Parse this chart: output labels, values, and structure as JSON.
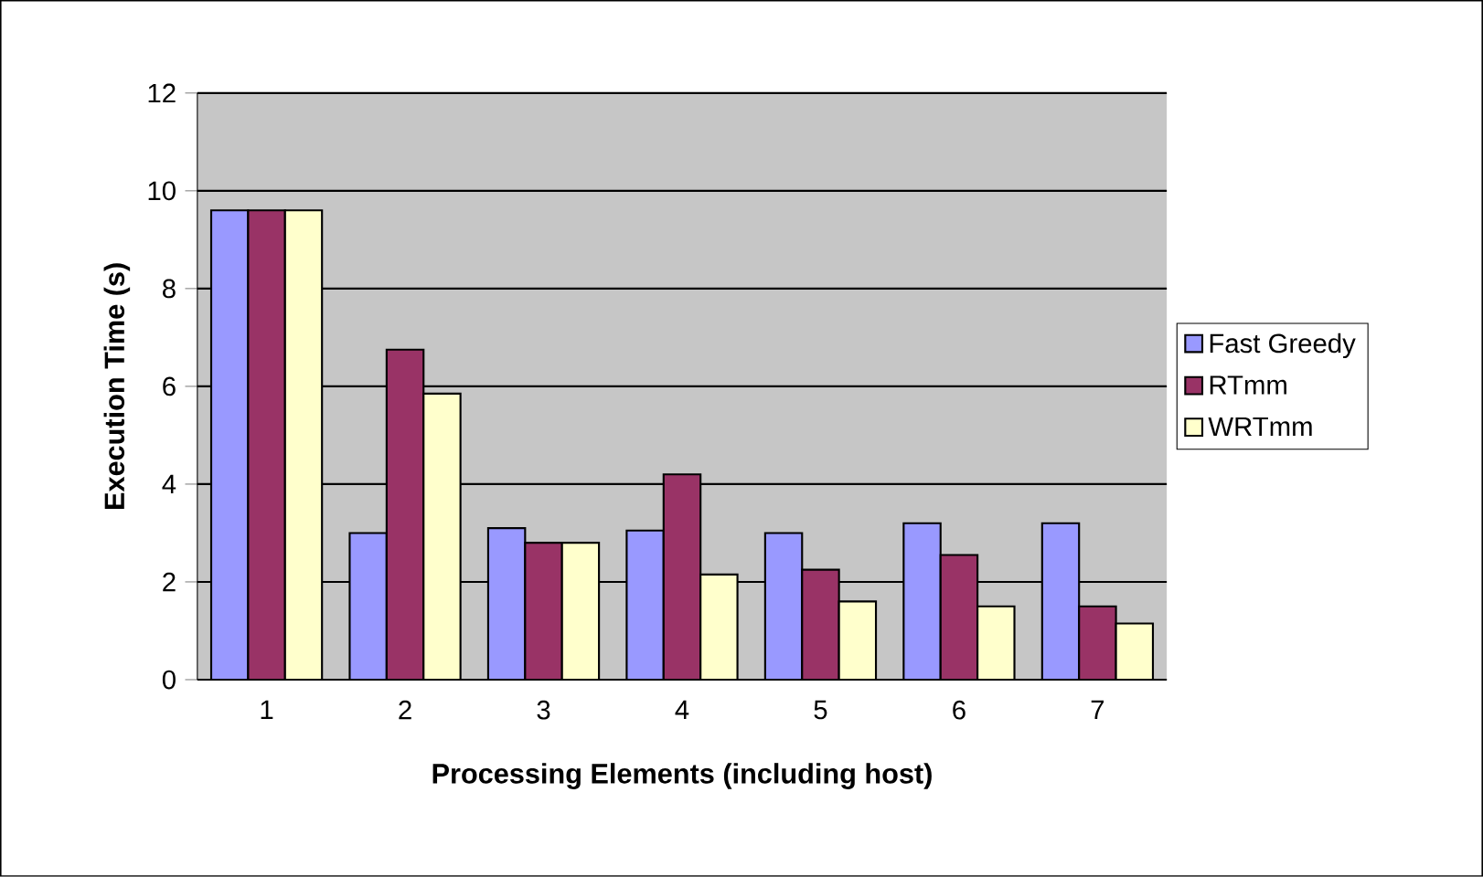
{
  "chart_data": {
    "type": "bar",
    "xlabel": "Processing Elements (including host)",
    "ylabel": "Execution Time (s)",
    "categories": [
      "1",
      "2",
      "3",
      "4",
      "5",
      "6",
      "7"
    ],
    "series": [
      {
        "name": "Fast Greedy",
        "color": "#9999ff",
        "values": [
          9.6,
          3.0,
          3.1,
          3.05,
          3.0,
          3.2,
          3.2
        ]
      },
      {
        "name": "RTmm",
        "color": "#993366",
        "values": [
          9.6,
          6.75,
          2.8,
          4.2,
          2.25,
          2.55,
          1.5
        ]
      },
      {
        "name": "WRTmm",
        "color": "#ffffcc",
        "values": [
          9.6,
          5.85,
          2.8,
          2.15,
          1.6,
          1.5,
          1.15
        ]
      }
    ],
    "ylim": [
      0,
      12
    ],
    "yticks": [
      0,
      2,
      4,
      6,
      8,
      10,
      12
    ],
    "grid": "y",
    "legend": "right"
  }
}
